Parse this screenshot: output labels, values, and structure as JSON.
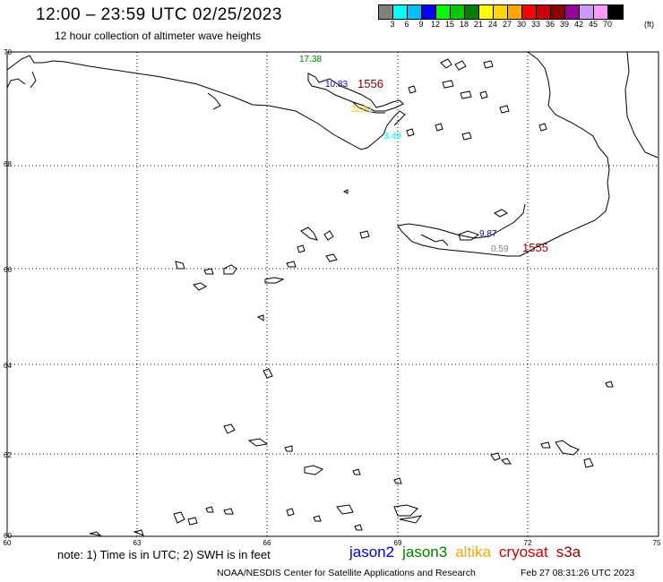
{
  "title": "12:00 – 23:59 UTC 02/25/2023",
  "subtitle": "12 hour collection of altimeter wave heights",
  "colorbar": {
    "ticks": [
      "3",
      "6",
      "9",
      "12",
      "15",
      "18",
      "21",
      "24",
      "27",
      "30",
      "33",
      "36",
      "39",
      "42",
      "45",
      "70"
    ],
    "unit": "(ft)",
    "colors": [
      "#808080",
      "#00ffff",
      "#00bfff",
      "#0000ff",
      "#00ff00",
      "#00cc00",
      "#008000",
      "#ffff00",
      "#ffd700",
      "#ffa500",
      "#ff0000",
      "#cc0000",
      "#8b0000",
      "#990099",
      "#cc99ff",
      "#ff99ff",
      "#000000"
    ]
  },
  "lat_labels": [
    "70",
    "68",
    "66",
    "64",
    "62",
    "60"
  ],
  "lon_labels": [
    "60",
    "63",
    "66",
    "69",
    "72",
    "75"
  ],
  "observations": [
    {
      "text": "17.38",
      "color": "#008000"
    },
    {
      "text": "10.83",
      "color": "#0000cd"
    },
    {
      "text": "22.81",
      "color": "#ffd700"
    },
    {
      "text": "3.49",
      "color": "#00ffff"
    },
    {
      "text": "9.87",
      "color": "#00008b"
    },
    {
      "text": "0.59",
      "color": "#808080"
    }
  ],
  "tracks": [
    {
      "text": "1556",
      "color": "#8b0000"
    },
    {
      "text": "1555",
      "color": "#8b0000"
    }
  ],
  "note": "note: 1) Time is in UTC; 2) SWH is in feet",
  "legend": [
    {
      "name": "jason2",
      "color": "#0000cd"
    },
    {
      "name": "jason3",
      "color": "#008000"
    },
    {
      "name": "altika",
      "color": "#ffa500"
    },
    {
      "name": "cryosat",
      "color": "#cc0000"
    },
    {
      "name": "s3a",
      "color": "#8b0000"
    }
  ],
  "footer_left": "NOAA/NESDIS Center for Satellite Applications and Research",
  "footer_right": "Feb 27 08:31:26 UTC 2023"
}
